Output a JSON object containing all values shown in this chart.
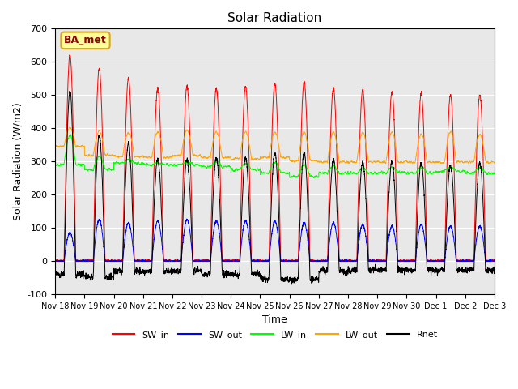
{
  "title": "Solar Radiation",
  "ylabel": "Solar Radiation (W/m2)",
  "xlabel": "Time",
  "ylim": [
    -100,
    700
  ],
  "yticks": [
    -100,
    0,
    100,
    200,
    300,
    400,
    500,
    600,
    700
  ],
  "xtick_labels": [
    "Nov 18",
    "Nov 19",
    "Nov 20",
    "Nov 21",
    "Nov 22",
    "Nov 23",
    "Nov 24",
    "Nov 25",
    "Nov 26",
    "Nov 27",
    "Nov 28",
    "Nov 29",
    "Nov 30",
    "Dec 1",
    "Dec 2",
    "Dec 3"
  ],
  "annotation": "BA_met",
  "legend": [
    "SW_in",
    "SW_out",
    "LW_in",
    "LW_out",
    "Rnet"
  ],
  "legend_colors": [
    "red",
    "blue",
    "#00ff00",
    "orange",
    "black"
  ],
  "background_color": "#e8e8e8",
  "n_days": 15,
  "ppd": 288,
  "sw_in_peaks": [
    620,
    580,
    550,
    520,
    525,
    520,
    525,
    535,
    540,
    520,
    515,
    510,
    505,
    500,
    500
  ],
  "sw_out_peaks": [
    85,
    125,
    115,
    120,
    125,
    120,
    120,
    120,
    115,
    115,
    110,
    105,
    110,
    105,
    105
  ],
  "lw_in_baseline": [
    290,
    275,
    295,
    290,
    290,
    285,
    275,
    265,
    255,
    265,
    265,
    265,
    265,
    270,
    265
  ],
  "lw_in_peaks": [
    380,
    315,
    305,
    295,
    298,
    298,
    293,
    298,
    290,
    285,
    278,
    283,
    282,
    282,
    282
  ],
  "lw_out_baseline": [
    345,
    318,
    315,
    312,
    318,
    312,
    308,
    312,
    302,
    298,
    298,
    298,
    298,
    298,
    298
  ],
  "lw_out_peaks": [
    403,
    393,
    388,
    388,
    393,
    388,
    388,
    388,
    388,
    388,
    388,
    388,
    382,
    388,
    382
  ],
  "night_rnet": [
    -40,
    -50,
    -30,
    -30,
    -30,
    -40,
    -40,
    -55,
    -55,
    -30,
    -28,
    -28,
    -28,
    -28,
    -28
  ]
}
